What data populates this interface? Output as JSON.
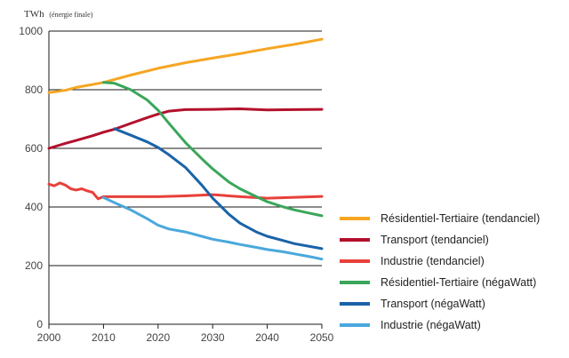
{
  "chart_data": {
    "type": "line",
    "unit_label": "TWh",
    "unit_qualifier": "(énergie finale)",
    "x_ticks": [
      "2000",
      "2010",
      "2020",
      "2030",
      "2040",
      "2050"
    ],
    "y_ticks": [
      "0",
      "200",
      "400",
      "600",
      "800",
      "1000"
    ],
    "xlim": [
      2000,
      2050
    ],
    "ylim": [
      0,
      1000
    ],
    "horizontal_gridlines": [
      200,
      400,
      600,
      800,
      1000
    ],
    "legend_position": "right",
    "series": [
      {
        "name": "Résidentiel-Tertiaire (tendanciel)",
        "color": "#f5a623",
        "x": [
          2000,
          2003,
          2005,
          2008,
          2010,
          2015,
          2020,
          2025,
          2030,
          2035,
          2040,
          2045,
          2050
        ],
        "y": [
          790,
          798,
          808,
          818,
          825,
          850,
          873,
          892,
          908,
          923,
          940,
          955,
          972
        ]
      },
      {
        "name": "Transport (tendanciel)",
        "color": "#b3102c",
        "x": [
          2000,
          2003,
          2005,
          2008,
          2010,
          2012,
          2015,
          2018,
          2020,
          2022,
          2025,
          2030,
          2035,
          2040,
          2045,
          2050
        ],
        "y": [
          600,
          617,
          627,
          643,
          655,
          665,
          685,
          705,
          717,
          727,
          732,
          733,
          735,
          731,
          732,
          733
        ]
      },
      {
        "name": "Industrie (tendanciel)",
        "color": "#e8403a",
        "x": [
          2000,
          2001,
          2002,
          2003,
          2004,
          2005,
          2006,
          2007,
          2008,
          2009,
          2010,
          2015,
          2020,
          2025,
          2030,
          2035,
          2040,
          2045,
          2050
        ],
        "y": [
          478,
          472,
          482,
          475,
          462,
          458,
          462,
          455,
          450,
          428,
          435,
          435,
          435,
          438,
          442,
          435,
          430,
          433,
          436
        ]
      },
      {
        "name": "Résidentiel-Tertiaire (négaWatt)",
        "color": "#3aa65a",
        "x": [
          2010,
          2012,
          2015,
          2018,
          2020,
          2022,
          2025,
          2028,
          2030,
          2033,
          2035,
          2038,
          2040,
          2043,
          2045,
          2048,
          2050
        ],
        "y": [
          825,
          822,
          800,
          765,
          730,
          685,
          620,
          565,
          530,
          485,
          462,
          435,
          418,
          400,
          390,
          378,
          370
        ]
      },
      {
        "name": "Transport (négaWatt)",
        "color": "#1a63a8",
        "x": [
          2012,
          2015,
          2018,
          2020,
          2022,
          2025,
          2028,
          2030,
          2033,
          2035,
          2038,
          2040,
          2043,
          2045,
          2048,
          2050
        ],
        "y": [
          667,
          645,
          622,
          603,
          578,
          535,
          475,
          430,
          375,
          345,
          315,
          300,
          285,
          275,
          265,
          258
        ]
      },
      {
        "name": "Industrie (négaWatt)",
        "color": "#4aa8dc",
        "x": [
          2010,
          2012,
          2015,
          2018,
          2020,
          2022,
          2025,
          2028,
          2030,
          2033,
          2035,
          2038,
          2040,
          2043,
          2045,
          2048,
          2050
        ],
        "y": [
          432,
          415,
          390,
          360,
          338,
          325,
          315,
          300,
          290,
          280,
          272,
          262,
          255,
          247,
          240,
          230,
          222
        ]
      }
    ]
  }
}
